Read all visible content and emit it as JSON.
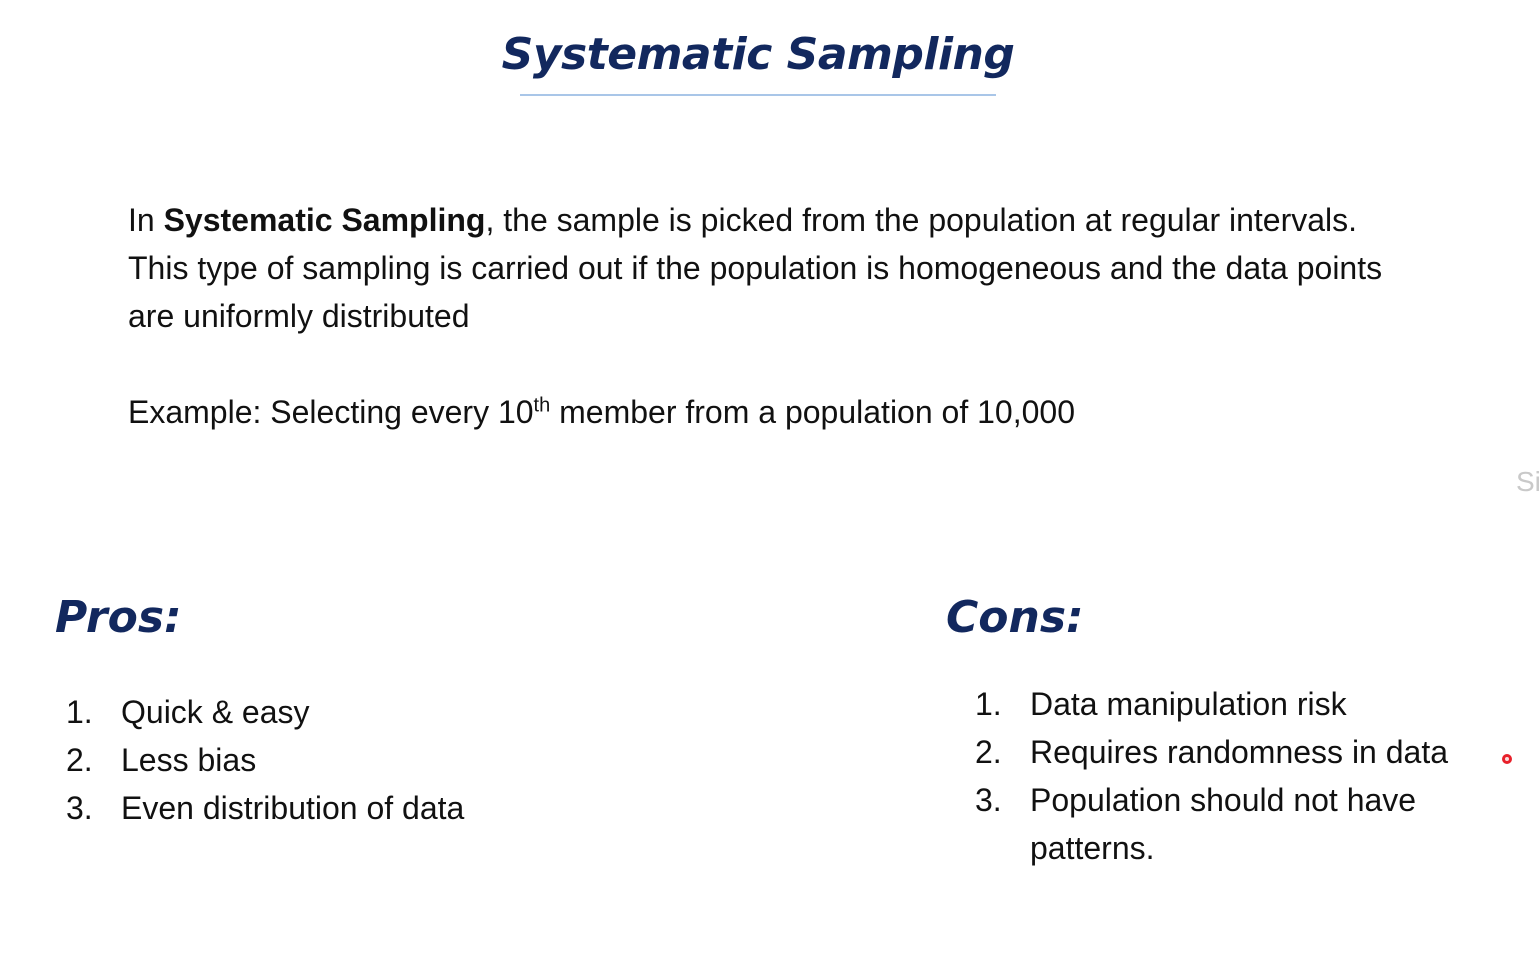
{
  "title": "Systematic Sampling",
  "intro": {
    "prefix": "In ",
    "term": "Systematic Sampling",
    "rest": ", the sample is picked from the population at regular intervals. This type of sampling is carried out if the population is homogeneous and the data points are uniformly distributed"
  },
  "example": {
    "prefix": "Example: Selecting every 10",
    "superscript": "th",
    "suffix": " member from a population of 10,000"
  },
  "edge_text": "Si",
  "pros": {
    "heading": "Pros:",
    "items": [
      {
        "num": "1.",
        "text": "Quick & easy"
      },
      {
        "num": "2.",
        "text": "Less bias"
      },
      {
        "num": "3.",
        "text": "Even distribution of data"
      }
    ]
  },
  "cons": {
    "heading": "Cons:",
    "items": [
      {
        "num": "1.",
        "text": "Data manipulation risk"
      },
      {
        "num": "2.",
        "text": "Requires randomness in data"
      },
      {
        "num": "3.",
        "text": "Population should not have patterns."
      }
    ]
  },
  "colors": {
    "heading": "#12285e",
    "underline": "#a9c6e8",
    "body_text": "#111111",
    "pointer": "#e8202a"
  }
}
